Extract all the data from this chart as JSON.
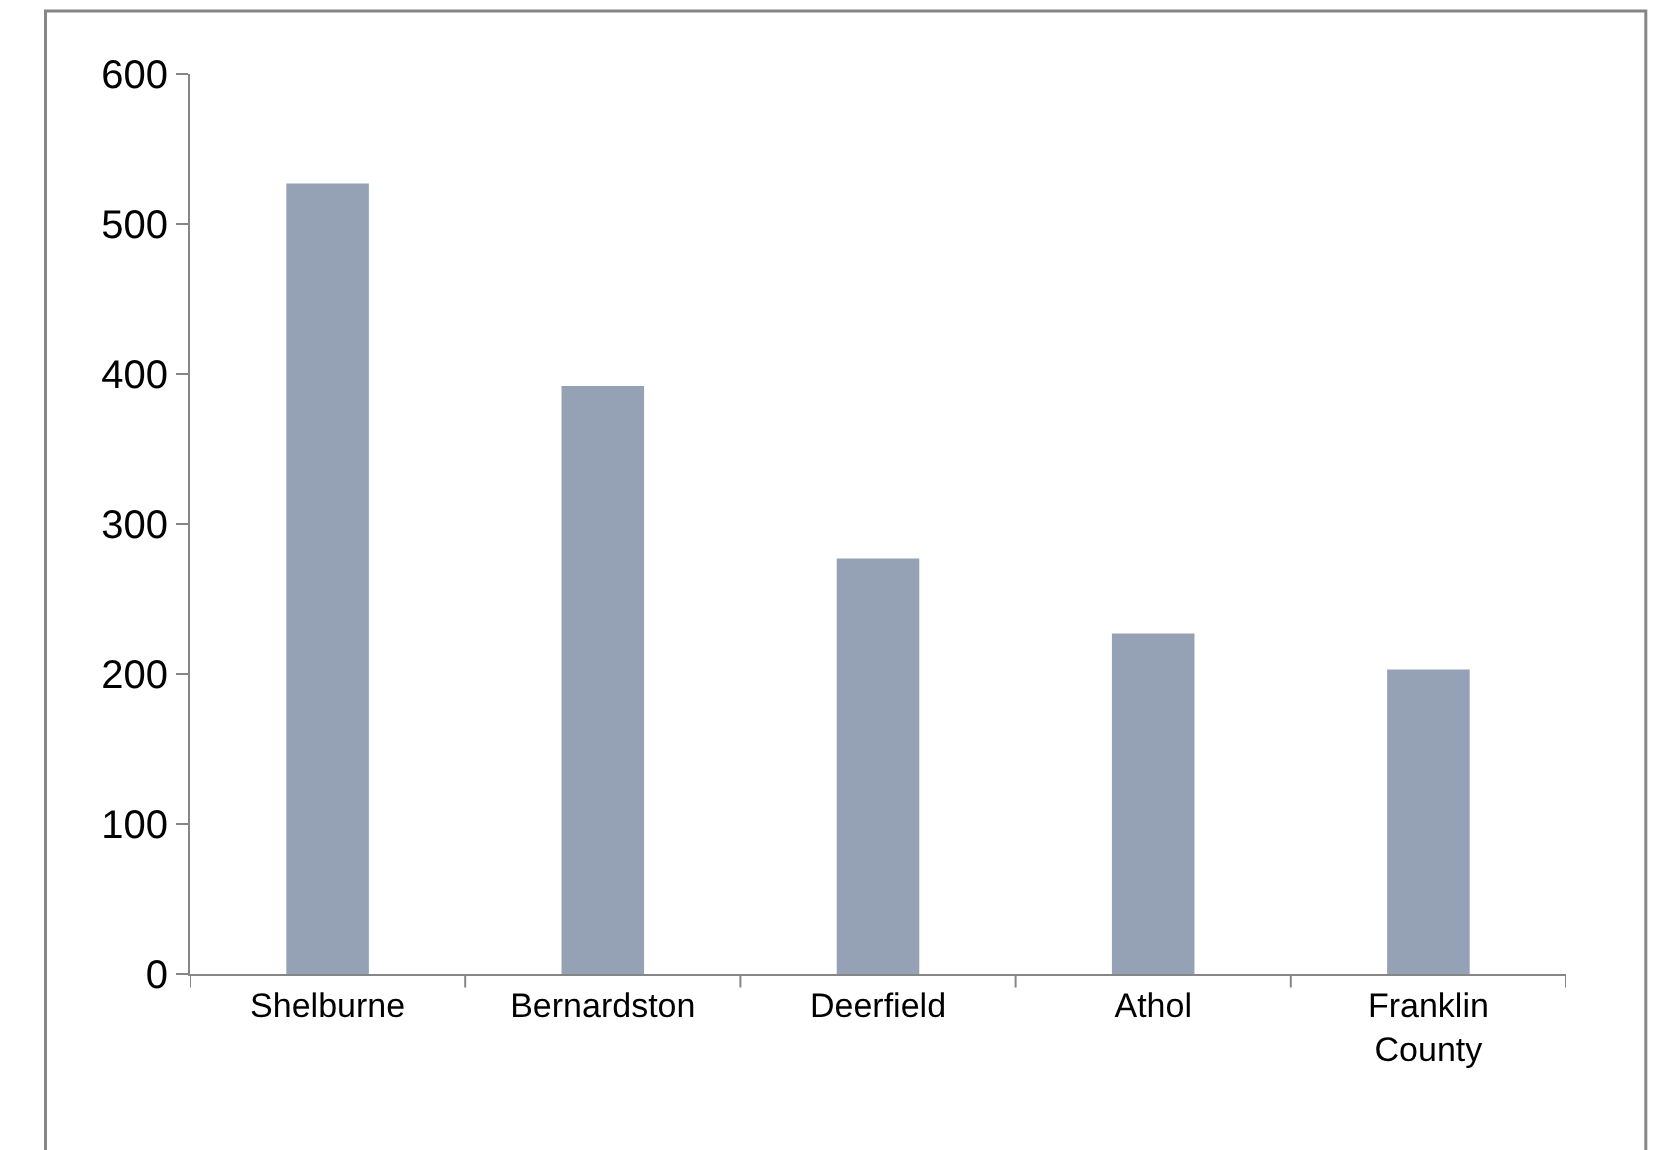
{
  "chart_data": {
    "type": "bar",
    "categories": [
      "Shelburne",
      "Bernardston",
      "Deerfield",
      "Athol",
      "Franklin County"
    ],
    "values": [
      527,
      392,
      277,
      227,
      203
    ],
    "color": "#95a1b4",
    "ylim": [
      0,
      600
    ],
    "yticks": [
      0,
      100,
      200,
      300,
      400,
      500,
      600
    ],
    "grid": false
  }
}
